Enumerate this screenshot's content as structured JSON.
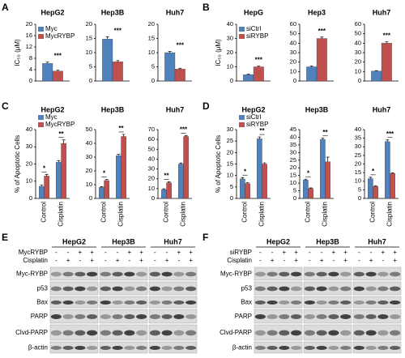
{
  "panel_labels": [
    "A",
    "B",
    "C",
    "D",
    "E",
    "F"
  ],
  "chart_data": [
    {
      "type": "bar",
      "title": "HepG2",
      "ylabel": "IC₅₀ (μM)",
      "legend": "upper left",
      "categories": [
        null
      ],
      "series": [
        {
          "name": "Myc",
          "color": "#4f81bd",
          "values": [
            6.2
          ],
          "errors": [
            0.5
          ]
        },
        {
          "name": "MycRYBP",
          "color": "#c0504d",
          "values": [
            3.5
          ],
          "errors": [
            0.3
          ]
        }
      ],
      "annotations": [
        "***"
      ],
      "ylim": [
        0,
        20
      ],
      "yticks": [
        0,
        4,
        8,
        12,
        16,
        20
      ]
    },
    {
      "type": "bar",
      "title": "Hep3B",
      "categories": [
        null
      ],
      "series": [
        {
          "color": "#4f81bd",
          "values": [
            14.8
          ],
          "errors": [
            0.8
          ]
        },
        {
          "color": "#c0504d",
          "values": [
            6.8
          ],
          "errors": [
            0.4
          ]
        }
      ],
      "annotations": [
        "***"
      ],
      "ylim": [
        0,
        20
      ],
      "yticks": [
        0,
        5,
        10,
        15,
        20
      ]
    },
    {
      "type": "bar",
      "title": "Huh7",
      "categories": [
        null
      ],
      "series": [
        {
          "color": "#4f81bd",
          "values": [
            10
          ],
          "errors": [
            0.4
          ]
        },
        {
          "color": "#c0504d",
          "values": [
            4.2
          ],
          "errors": [
            0.3
          ]
        }
      ],
      "annotations": [
        "***"
      ],
      "ylim": [
        0,
        20
      ],
      "yticks": [
        0,
        5,
        10,
        15,
        20
      ]
    },
    {
      "type": "bar",
      "title": "HepG",
      "ylabel": "IC₅₀ (μM)",
      "legend": "upper left",
      "categories": [
        null
      ],
      "series": [
        {
          "name": "siCtrl",
          "color": "#4f81bd",
          "values": [
            4.5
          ],
          "errors": [
            0.3
          ]
        },
        {
          "name": "siRYBP",
          "color": "#c0504d",
          "values": [
            10
          ],
          "errors": [
            0.6
          ]
        }
      ],
      "annotations": [
        "***"
      ],
      "ylim": [
        0,
        40
      ],
      "yticks": [
        0,
        10,
        20,
        30,
        40
      ]
    },
    {
      "type": "bar",
      "title": "Hep3",
      "categories": [
        null
      ],
      "series": [
        {
          "color": "#4f81bd",
          "values": [
            15
          ],
          "errors": [
            1
          ]
        },
        {
          "color": "#c0504d",
          "values": [
            45
          ],
          "errors": [
            1.5
          ]
        }
      ],
      "annotations": [
        "***"
      ],
      "ylim": [
        0,
        60
      ],
      "yticks": [
        0,
        10,
        20,
        30,
        40,
        50,
        60
      ]
    },
    {
      "type": "bar",
      "title": "Huh7",
      "categories": [
        null
      ],
      "series": [
        {
          "color": "#4f81bd",
          "values": [
            10.5
          ],
          "errors": [
            0.5
          ]
        },
        {
          "color": "#c0504d",
          "values": [
            40
          ],
          "errors": [
            1.5
          ]
        }
      ],
      "annotations": [
        "***"
      ],
      "ylim": [
        0,
        60
      ],
      "yticks": [
        0,
        10,
        20,
        30,
        40,
        50,
        60
      ]
    },
    {
      "type": "bar",
      "title": "HepG2",
      "ylabel": "% of Apoptotic Cells",
      "legend": "upper left",
      "categories": [
        "Control",
        "Cisplatin"
      ],
      "series": [
        {
          "name": "Myc",
          "color": "#4f81bd",
          "values": [
            7,
            21
          ],
          "errors": [
            0.8,
            1
          ]
        },
        {
          "name": "MycRYBP",
          "color": "#c0504d",
          "values": [
            13,
            32
          ],
          "errors": [
            1,
            2
          ]
        }
      ],
      "annotations": [
        "*",
        "**"
      ],
      "ylim": [
        0,
        40
      ],
      "yticks": [
        0,
        10,
        20,
        30,
        40
      ]
    },
    {
      "type": "bar",
      "title": "Hep3B",
      "categories": [
        "Control",
        "Cisplatin"
      ],
      "series": [
        {
          "color": "#4f81bd",
          "values": [
            8,
            31
          ],
          "errors": [
            0.6,
            1
          ]
        },
        {
          "color": "#c0504d",
          "values": [
            13,
            45
          ],
          "errors": [
            0.8,
            1.5
          ]
        }
      ],
      "annotations": [
        "*",
        "**"
      ],
      "ylim": [
        0,
        50
      ],
      "yticks": [
        0,
        10,
        20,
        30,
        40,
        50
      ]
    },
    {
      "type": "bar",
      "title": "Huh7",
      "categories": [
        "Control",
        "Cisplatin"
      ],
      "series": [
        {
          "color": "#4f81bd",
          "values": [
            9,
            35
          ],
          "errors": [
            0.8,
            1
          ]
        },
        {
          "color": "#c0504d",
          "values": [
            16,
            63
          ],
          "errors": [
            1,
            1
          ]
        }
      ],
      "annotations": [
        "**",
        "***"
      ],
      "ylim": [
        0,
        70
      ],
      "yticks": [
        0,
        10,
        20,
        30,
        40,
        50,
        60,
        70
      ]
    },
    {
      "type": "bar",
      "title": "HepG2",
      "ylabel": "% of Apoptotic Cells",
      "legend": "upper left",
      "categories": [
        "Control",
        "Cisplatin"
      ],
      "series": [
        {
          "name": "siCtrl",
          "color": "#4f81bd",
          "values": [
            8.5,
            26
          ],
          "errors": [
            0.6,
            0.8
          ]
        },
        {
          "name": "siRYBP",
          "color": "#c0504d",
          "values": [
            6.5,
            15
          ],
          "errors": [
            0.4,
            0.5
          ]
        }
      ],
      "annotations": [
        "*",
        "**"
      ],
      "ylim": [
        0,
        30
      ],
      "yticks": [
        0,
        5,
        10,
        15,
        20,
        25,
        30
      ]
    },
    {
      "type": "bar",
      "title": "Hep3B",
      "categories": [
        "Control",
        "Cisplatin"
      ],
      "series": [
        {
          "color": "#4f81bd",
          "values": [
            12,
            38.5
          ],
          "errors": [
            0.6,
            0.8
          ]
        },
        {
          "color": "#c0504d",
          "values": [
            6.5,
            24
          ],
          "errors": [
            0.4,
            3
          ]
        }
      ],
      "annotations": [
        "*",
        "**"
      ],
      "ylim": [
        0,
        45
      ],
      "yticks": [
        0,
        5,
        10,
        15,
        20,
        25,
        30,
        35,
        40,
        45
      ]
    },
    {
      "type": "bar",
      "title": "Huh7",
      "categories": [
        "Control",
        "Cisplatin"
      ],
      "series": [
        {
          "color": "#4f81bd",
          "values": [
            11.5,
            33
          ],
          "errors": [
            0.8,
            1
          ]
        },
        {
          "color": "#c0504d",
          "values": [
            7,
            14.5
          ],
          "errors": [
            0.4,
            0.4
          ]
        }
      ],
      "annotations": [
        "*",
        "***"
      ],
      "ylim": [
        0,
        40
      ],
      "yticks": [
        0,
        5,
        10,
        15,
        20,
        25,
        30,
        35,
        40
      ]
    }
  ],
  "blots": [
    {
      "cell_lines": [
        "HepG2",
        "Hep3B",
        "Huh7"
      ],
      "treatment_rows": [
        {
          "name": "MycRYBP",
          "signs": [
            "-",
            "-",
            "+",
            "+"
          ]
        },
        {
          "name": "Cisplatin",
          "signs": [
            "-",
            "+",
            "-",
            "+"
          ]
        }
      ],
      "proteins": [
        "Myc-RYBP",
        "p53",
        "Bax",
        "PARP",
        "Clvd-PARP",
        "β-actin"
      ]
    },
    {
      "cell_lines": [
        "HepG2",
        "Hep3B",
        "Huh7"
      ],
      "treatment_rows": [
        {
          "name": "siRYBP",
          "signs": [
            "-",
            "-",
            "+",
            "+"
          ]
        },
        {
          "name": "Cisplatin",
          "signs": [
            "-",
            "+",
            "-",
            "+"
          ]
        }
      ],
      "proteins": [
        "Myc-RYBP",
        "p53",
        "Bax",
        "PARP",
        "Clvd-PARP",
        "β-actin"
      ]
    }
  ]
}
